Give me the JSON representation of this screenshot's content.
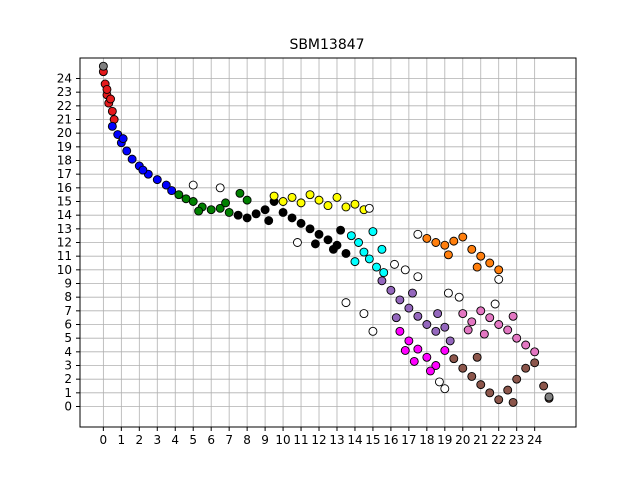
{
  "chart_data": {
    "type": "scatter",
    "title": "SBM13847",
    "xlabel": "",
    "ylabel": "",
    "xlim": [
      -1.3,
      26.3
    ],
    "ylim": [
      -1.5,
      25.5
    ],
    "grid": true,
    "x_ticks": [
      "0",
      "1",
      "2",
      "3",
      "4",
      "5",
      "6",
      "7",
      "8",
      "9",
      "10",
      "11",
      "12",
      "13",
      "14",
      "15",
      "16",
      "17",
      "18",
      "19",
      "20",
      "21",
      "22",
      "23",
      "24"
    ],
    "y_ticks": [
      "0",
      "1",
      "2",
      "3",
      "4",
      "5",
      "6",
      "7",
      "8",
      "9",
      "10",
      "11",
      "12",
      "13",
      "14",
      "15",
      "16",
      "17",
      "18",
      "19",
      "20",
      "21",
      "22",
      "23",
      "24"
    ],
    "series": [
      {
        "color": "#e41a1c",
        "points": [
          [
            0.0,
            24.5
          ],
          [
            0.1,
            23.6
          ],
          [
            0.2,
            22.8
          ],
          [
            0.3,
            22.2
          ],
          [
            0.5,
            21.6
          ],
          [
            0.6,
            21.0
          ],
          [
            0.4,
            22.5
          ],
          [
            0.2,
            23.2
          ]
        ]
      },
      {
        "color": "#0000ff",
        "points": [
          [
            0.5,
            20.5
          ],
          [
            0.8,
            19.9
          ],
          [
            1.0,
            19.3
          ],
          [
            1.3,
            18.7
          ],
          [
            1.6,
            18.1
          ],
          [
            2.0,
            17.6
          ],
          [
            2.5,
            17.0
          ],
          [
            3.0,
            16.6
          ],
          [
            3.5,
            16.2
          ],
          [
            3.8,
            15.8
          ],
          [
            1.1,
            19.6
          ],
          [
            2.2,
            17.3
          ]
        ]
      },
      {
        "color": "#008000",
        "points": [
          [
            4.2,
            15.5
          ],
          [
            4.6,
            15.2
          ],
          [
            5.0,
            15.0
          ],
          [
            5.5,
            14.6
          ],
          [
            6.0,
            14.4
          ],
          [
            6.5,
            14.5
          ],
          [
            7.0,
            14.2
          ],
          [
            7.6,
            15.6
          ],
          [
            8.0,
            15.1
          ],
          [
            5.3,
            14.3
          ],
          [
            6.8,
            14.9
          ]
        ]
      },
      {
        "color": "#000000",
        "points": [
          [
            7.5,
            14.0
          ],
          [
            8.0,
            13.8
          ],
          [
            8.5,
            14.1
          ],
          [
            9.0,
            14.4
          ],
          [
            9.5,
            15.0
          ],
          [
            10.0,
            14.2
          ],
          [
            10.5,
            13.8
          ],
          [
            11.0,
            13.4
          ],
          [
            11.5,
            13.0
          ],
          [
            12.0,
            12.6
          ],
          [
            12.5,
            12.2
          ],
          [
            13.0,
            11.8
          ],
          [
            13.5,
            11.2
          ],
          [
            13.2,
            12.9
          ],
          [
            9.2,
            13.6
          ],
          [
            11.8,
            11.9
          ],
          [
            12.8,
            11.5
          ]
        ]
      },
      {
        "color": "#ffff00",
        "points": [
          [
            9.5,
            15.4
          ],
          [
            10.0,
            15.0
          ],
          [
            10.5,
            15.3
          ],
          [
            11.0,
            14.9
          ],
          [
            11.5,
            15.5
          ],
          [
            12.0,
            15.1
          ],
          [
            12.5,
            14.7
          ],
          [
            13.0,
            15.3
          ],
          [
            13.5,
            14.6
          ],
          [
            14.0,
            14.8
          ],
          [
            14.5,
            14.4
          ]
        ]
      },
      {
        "color": "#00ffff",
        "points": [
          [
            13.8,
            12.5
          ],
          [
            14.2,
            12.0
          ],
          [
            14.5,
            11.3
          ],
          [
            14.8,
            10.8
          ],
          [
            15.2,
            10.2
          ],
          [
            15.5,
            11.5
          ],
          [
            15.0,
            12.8
          ],
          [
            14.0,
            10.6
          ],
          [
            15.6,
            9.8
          ]
        ]
      },
      {
        "color": "#9467bd",
        "points": [
          [
            15.5,
            9.2
          ],
          [
            16.0,
            8.5
          ],
          [
            16.5,
            7.8
          ],
          [
            17.0,
            7.2
          ],
          [
            17.5,
            6.6
          ],
          [
            18.0,
            6.0
          ],
          [
            18.5,
            5.5
          ],
          [
            19.0,
            5.8
          ],
          [
            18.6,
            6.8
          ],
          [
            17.2,
            8.3
          ],
          [
            16.3,
            6.5
          ],
          [
            19.3,
            4.8
          ]
        ]
      },
      {
        "color": "#ff00ff",
        "points": [
          [
            16.5,
            5.5
          ],
          [
            17.0,
            4.8
          ],
          [
            17.5,
            4.2
          ],
          [
            18.0,
            3.6
          ],
          [
            18.5,
            3.0
          ],
          [
            17.3,
            3.3
          ],
          [
            16.8,
            4.1
          ],
          [
            18.2,
            2.6
          ],
          [
            19.0,
            4.1
          ]
        ]
      },
      {
        "color": "#ff7f0e",
        "points": [
          [
            18.0,
            12.3
          ],
          [
            18.5,
            12.0
          ],
          [
            19.0,
            11.8
          ],
          [
            19.5,
            12.1
          ],
          [
            20.0,
            12.4
          ],
          [
            20.5,
            11.5
          ],
          [
            21.0,
            11.0
          ],
          [
            21.5,
            10.5
          ],
          [
            22.0,
            10.0
          ],
          [
            19.2,
            11.1
          ],
          [
            20.8,
            10.2
          ]
        ]
      },
      {
        "color": "#e377c2",
        "points": [
          [
            20.0,
            6.8
          ],
          [
            20.5,
            6.2
          ],
          [
            21.0,
            7.0
          ],
          [
            21.5,
            6.5
          ],
          [
            22.0,
            6.0
          ],
          [
            22.5,
            5.6
          ],
          [
            23.0,
            5.0
          ],
          [
            23.5,
            4.5
          ],
          [
            24.0,
            4.0
          ],
          [
            21.2,
            5.3
          ],
          [
            20.3,
            5.6
          ],
          [
            22.8,
            6.6
          ]
        ]
      },
      {
        "color": "#8c564b",
        "points": [
          [
            19.5,
            3.5
          ],
          [
            20.0,
            2.8
          ],
          [
            20.5,
            2.2
          ],
          [
            21.0,
            1.6
          ],
          [
            21.5,
            1.0
          ],
          [
            22.0,
            0.5
          ],
          [
            22.5,
            1.2
          ],
          [
            23.0,
            2.0
          ],
          [
            23.5,
            2.8
          ],
          [
            24.0,
            3.2
          ],
          [
            24.5,
            1.5
          ],
          [
            22.8,
            0.3
          ],
          [
            20.8,
            3.6
          ],
          [
            24.8,
            0.6
          ]
        ]
      },
      {
        "color": "#ffffff",
        "points": [
          [
            5.0,
            16.2
          ],
          [
            6.5,
            16.0
          ],
          [
            14.8,
            14.5
          ],
          [
            10.8,
            12.0
          ],
          [
            13.5,
            7.6
          ],
          [
            14.5,
            6.8
          ],
          [
            15.0,
            5.5
          ],
          [
            16.2,
            10.4
          ],
          [
            16.8,
            10.0
          ],
          [
            17.5,
            9.5
          ],
          [
            17.5,
            12.6
          ],
          [
            19.2,
            8.3
          ],
          [
            19.8,
            8.0
          ],
          [
            21.8,
            7.5
          ],
          [
            22.0,
            9.3
          ],
          [
            19.0,
            1.3
          ],
          [
            18.7,
            1.8
          ]
        ]
      },
      {
        "color": "#7f7f7f",
        "points": [
          [
            0.0,
            24.9
          ],
          [
            24.8,
            0.7
          ]
        ]
      }
    ]
  }
}
